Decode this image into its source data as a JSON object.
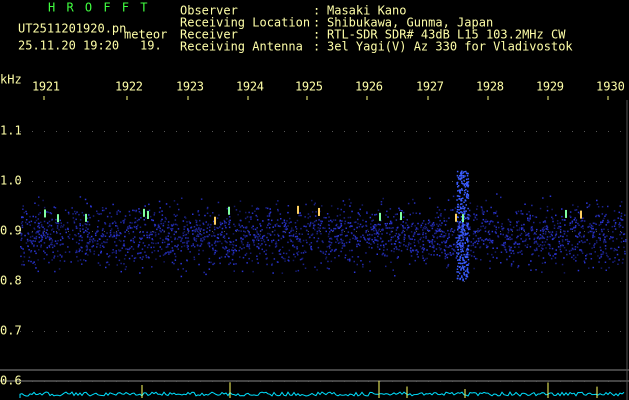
{
  "header": {
    "app": "H R O F F T",
    "file": "UT2511201920.pn",
    "tag": "meteor",
    "datetime": "25.11.20 19:20",
    "count": "19."
  },
  "info": [
    {
      "label": "Observer",
      "value": "Masaki Kano"
    },
    {
      "label": "Receiving Location",
      "value": "Shibukawa, Gunma, Japan"
    },
    {
      "label": "Receiver",
      "value": "RTL-SDR SDR# 43dB L15 103.2MHz CW"
    },
    {
      "label": "Receiving Antenna",
      "value": "3el Yagi(V) Az 330 for Vladivostok"
    }
  ],
  "freq_axis": {
    "unit": "kHz",
    "labels": [
      "1.1",
      "1.0",
      "0.9",
      "0.8",
      "0.7",
      "0.6"
    ]
  },
  "time_axis": {
    "labels": [
      "1921",
      "1922",
      "1923",
      "1924",
      "1925",
      "1926",
      "1927",
      "1928",
      "1929",
      "1930"
    ]
  }
}
